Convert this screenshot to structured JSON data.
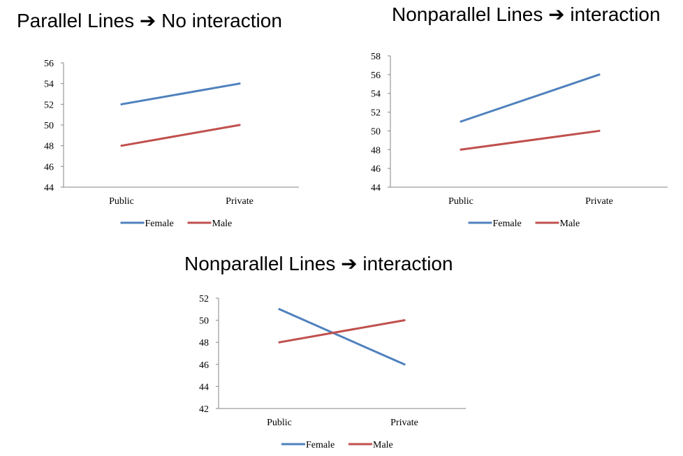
{
  "headings": [
    {
      "before": "Parallel Lines",
      "arrow": "➔",
      "after": "No interaction"
    },
    {
      "before": "Nonparallel Lines",
      "arrow": "➔",
      "after": "interaction"
    },
    {
      "before": "Nonparallel Lines",
      "arrow": "➔",
      "after": "interaction"
    }
  ],
  "colors": {
    "Female": "#4f81bd",
    "Male": "#c0504d",
    "axis": "#868686"
  },
  "chart_data": [
    {
      "type": "line",
      "categories": [
        "Public",
        "Private"
      ],
      "series": [
        {
          "name": "Female",
          "values": [
            52,
            54
          ]
        },
        {
          "name": "Male",
          "values": [
            48,
            50
          ]
        }
      ],
      "ylim": [
        44,
        56
      ],
      "yticks": [
        44,
        46,
        48,
        50,
        52,
        54,
        56
      ],
      "grid": false,
      "legend": "bottom"
    },
    {
      "type": "line",
      "categories": [
        "Public",
        "Private"
      ],
      "series": [
        {
          "name": "Female",
          "values": [
            51,
            56
          ]
        },
        {
          "name": "Male",
          "values": [
            48,
            50
          ]
        }
      ],
      "ylim": [
        44,
        58
      ],
      "yticks": [
        44,
        46,
        48,
        50,
        52,
        54,
        56,
        58
      ],
      "grid": false,
      "legend": "bottom"
    },
    {
      "type": "line",
      "categories": [
        "Public",
        "Private"
      ],
      "series": [
        {
          "name": "Female",
          "values": [
            51,
            46
          ]
        },
        {
          "name": "Male",
          "values": [
            48,
            50
          ]
        }
      ],
      "ylim": [
        42,
        52
      ],
      "yticks": [
        42,
        44,
        46,
        48,
        50,
        52
      ],
      "grid": false,
      "legend": "bottom"
    }
  ]
}
